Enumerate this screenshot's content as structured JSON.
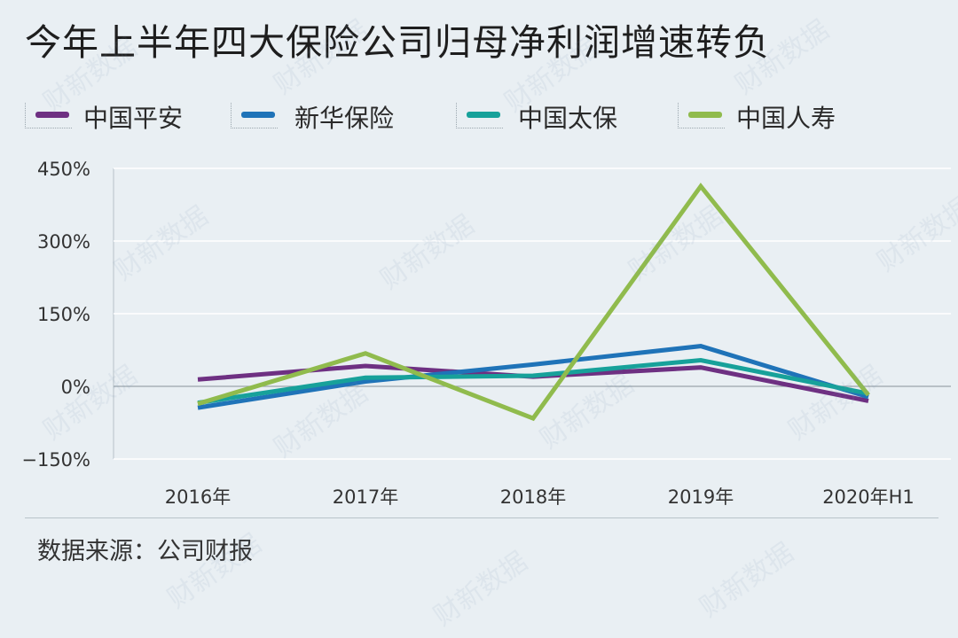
{
  "title": "今年上半年四大保险公司归母净利润增速转负",
  "source": "数据来源：公司财报",
  "watermark": "财新数据",
  "chart_data": {
    "type": "line",
    "categories": [
      "2016年",
      "2017年",
      "2018年",
      "2019年",
      "2020年H1"
    ],
    "y_ticks": [
      "450%",
      "300%",
      "150%",
      "0%",
      "−150%"
    ],
    "y_tick_values": [
      450,
      300,
      150,
      0,
      -150
    ],
    "ylim": [
      -150,
      450
    ],
    "grid": true,
    "legend_position": "top",
    "series": [
      {
        "name": "中国平安",
        "color": "#6e3082",
        "values": [
          14,
          42,
          20,
          39,
          -30
        ]
      },
      {
        "name": "新华保险",
        "color": "#1f73b8",
        "values": [
          -44,
          10,
          45,
          83,
          -22
        ]
      },
      {
        "name": "中国太保",
        "color": "#17a19a",
        "values": [
          -34,
          18,
          22,
          54,
          -15
        ]
      },
      {
        "name": "中国人寿",
        "color": "#90bb4d",
        "values": [
          -36,
          68,
          -66,
          413,
          -18
        ]
      }
    ]
  }
}
